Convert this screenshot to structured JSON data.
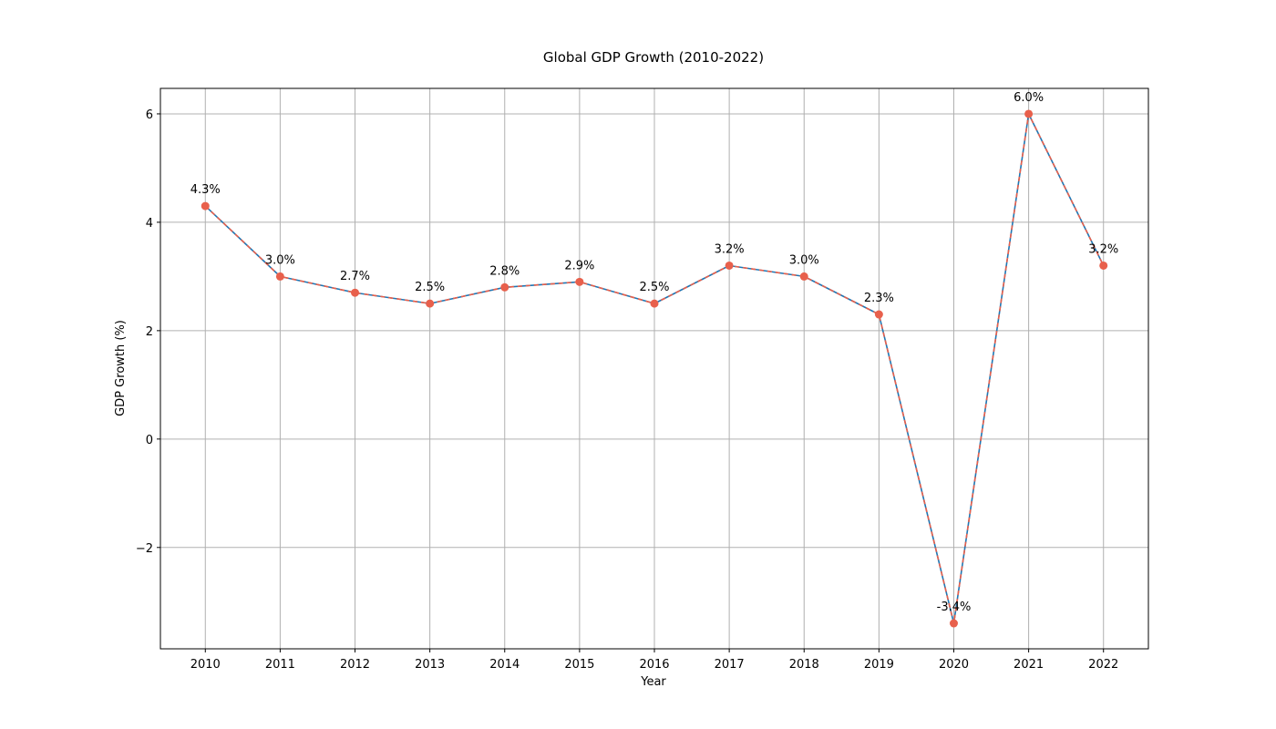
{
  "chart_data": {
    "type": "line",
    "title": "Global GDP Growth (2010-2022)",
    "xlabel": "Year",
    "ylabel": "GDP Growth (%)",
    "x": [
      2010,
      2011,
      2012,
      2013,
      2014,
      2015,
      2016,
      2017,
      2018,
      2019,
      2020,
      2021,
      2022
    ],
    "x_tick_labels": [
      "2010",
      "2011",
      "2012",
      "2013",
      "2014",
      "2015",
      "2016",
      "2017",
      "2018",
      "2019",
      "2020",
      "2021",
      "2022"
    ],
    "series": [
      {
        "values": [
          4.3,
          3.0,
          2.7,
          2.5,
          2.8,
          2.9,
          2.5,
          3.2,
          3.0,
          2.3,
          -3.4,
          6.0,
          3.2
        ],
        "data_labels": [
          "4.3%",
          "3.0%",
          "2.7%",
          "2.5%",
          "2.8%",
          "2.9%",
          "2.5%",
          "3.2%",
          "3.0%",
          "2.3%",
          "-3.4%",
          "6.0%",
          "3.2%"
        ],
        "line_color": "#1f77b4",
        "dash_color": "#e8604c",
        "marker_color": "#e8604c"
      }
    ],
    "xlim": [
      2009.4,
      2022.6
    ],
    "ylim": [
      -3.87,
      6.47
    ],
    "y_ticks": [
      -2,
      0,
      2,
      4,
      6
    ],
    "y_tick_labels": [
      "−2",
      "0",
      "2",
      "4",
      "6"
    ],
    "grid": true,
    "legend": "none"
  }
}
